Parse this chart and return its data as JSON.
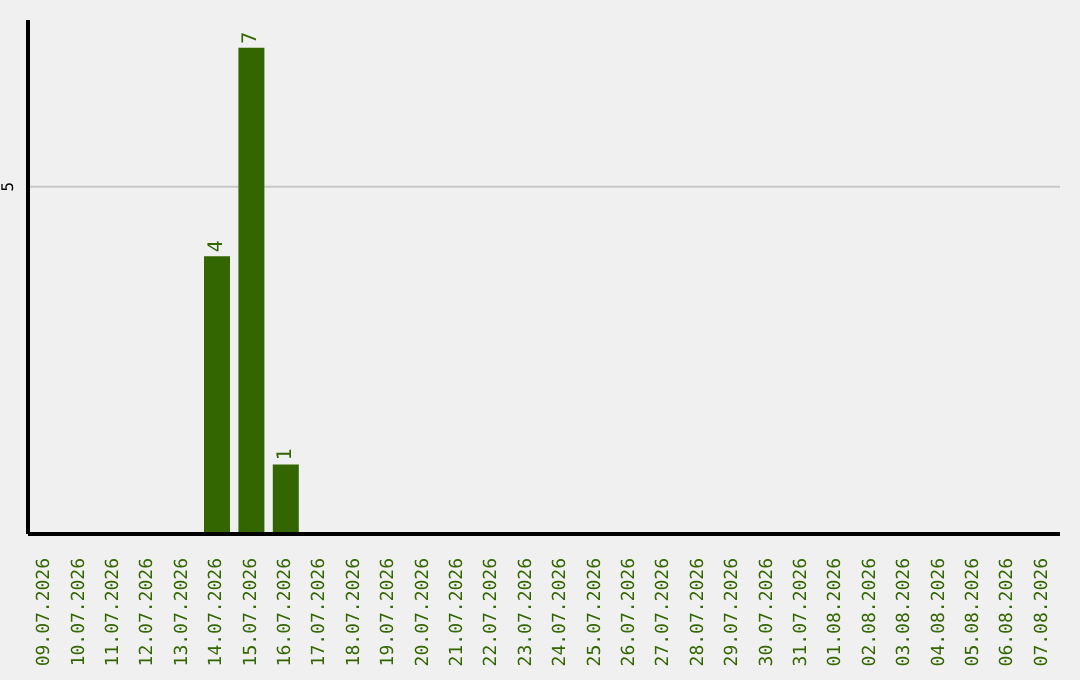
{
  "chart_data": {
    "type": "bar",
    "categories": [
      "09.07.2026",
      "10.07.2026",
      "11.07.2026",
      "12.07.2026",
      "13.07.2026",
      "14.07.2026",
      "15.07.2026",
      "16.07.2026",
      "17.07.2026",
      "18.07.2026",
      "19.07.2026",
      "20.07.2026",
      "21.07.2026",
      "22.07.2026",
      "23.07.2026",
      "24.07.2026",
      "25.07.2026",
      "26.07.2026",
      "27.07.2026",
      "28.07.2026",
      "29.07.2026",
      "30.07.2026",
      "31.07.2026",
      "01.08.2026",
      "02.08.2026",
      "03.08.2026",
      "04.08.2026",
      "05.08.2026",
      "06.08.2026",
      "07.08.2026"
    ],
    "values": [
      0,
      0,
      0,
      0,
      0,
      4,
      7,
      1,
      0,
      0,
      0,
      0,
      0,
      0,
      0,
      0,
      0,
      0,
      0,
      0,
      0,
      0,
      0,
      0,
      0,
      0,
      0,
      0,
      0,
      0
    ],
    "value_labels": [
      null,
      null,
      null,
      null,
      null,
      "4",
      "7",
      "1",
      null,
      null,
      null,
      null,
      null,
      null,
      null,
      null,
      null,
      null,
      null,
      null,
      null,
      null,
      null,
      null,
      null,
      null,
      null,
      null,
      null,
      null
    ],
    "color": "#336600",
    "ylim": [
      0,
      7.4
    ],
    "yticks": [
      5
    ],
    "grid": "y"
  }
}
